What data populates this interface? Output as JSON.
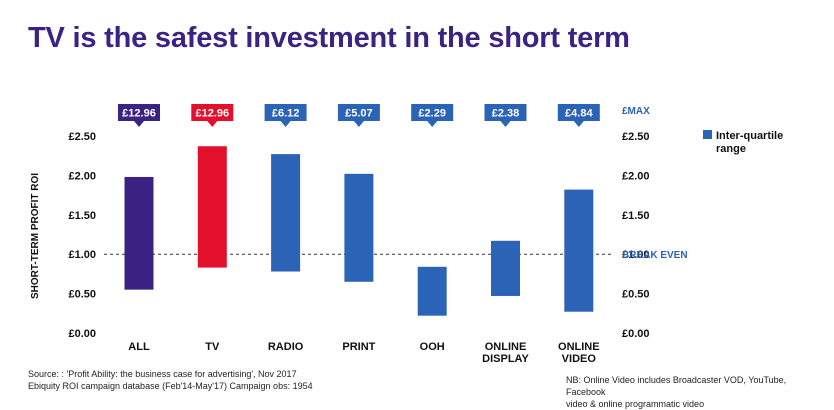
{
  "title": "TV is the safest investment in the short term",
  "chart_data": {
    "type": "bar",
    "subtype": "floating-range",
    "ylabel": "SHORT-TERM PROFIT ROI",
    "ylim": [
      0,
      2.5
    ],
    "y_ticks": [
      "£0.00",
      "£0.50",
      "£1.00",
      "£1.50",
      "£2.00",
      "£2.50"
    ],
    "y_tick_values": [
      0,
      0.5,
      1.0,
      1.5,
      2.0,
      2.5
    ],
    "grid": false,
    "max_label": "£MAX",
    "break_even": {
      "value": 1.0,
      "label": "BREAK EVEN"
    },
    "legend": {
      "label_lines": [
        "Inter-quartile",
        "range"
      ],
      "color": "#2b63b7",
      "position": "right"
    },
    "categories": [
      {
        "label_lines": [
          "ALL"
        ],
        "low": 0.55,
        "high": 1.98,
        "max": "£12.96",
        "color": "#3b2383"
      },
      {
        "label_lines": [
          "TV"
        ],
        "low": 0.83,
        "high": 2.37,
        "max": "£12.96",
        "color": "#e2102d"
      },
      {
        "label_lines": [
          "RADIO"
        ],
        "low": 0.78,
        "high": 2.27,
        "max": "£6.12",
        "color": "#2b63b7"
      },
      {
        "label_lines": [
          "PRINT"
        ],
        "low": 0.65,
        "high": 2.02,
        "max": "£5.07",
        "color": "#2b63b7"
      },
      {
        "label_lines": [
          "OOH"
        ],
        "low": 0.22,
        "high": 0.84,
        "max": "£2.29",
        "color": "#2b63b7"
      },
      {
        "label_lines": [
          "ONLINE",
          "DISPLAY"
        ],
        "low": 0.47,
        "high": 1.17,
        "max": "£2.38",
        "color": "#2b63b7"
      },
      {
        "label_lines": [
          "ONLINE",
          "VIDEO"
        ],
        "low": 0.27,
        "high": 1.82,
        "max": "£4.84",
        "color": "#2b63b7"
      }
    ]
  },
  "source_lines": [
    "Source: : 'Profit Ability: the business case for advertising', Nov 2017",
    "Ebiquity ROI campaign database (Feb'14-May'17) Campaign obs: 1954"
  ],
  "note_lines": [
    "NB: Online Video includes Broadcaster VOD, YouTube, Facebook",
    "video & online programmatic video"
  ],
  "colors": {
    "title": "#3b2383",
    "blue": "#2b63b7",
    "red": "#e2102d",
    "purple": "#3b2383"
  }
}
